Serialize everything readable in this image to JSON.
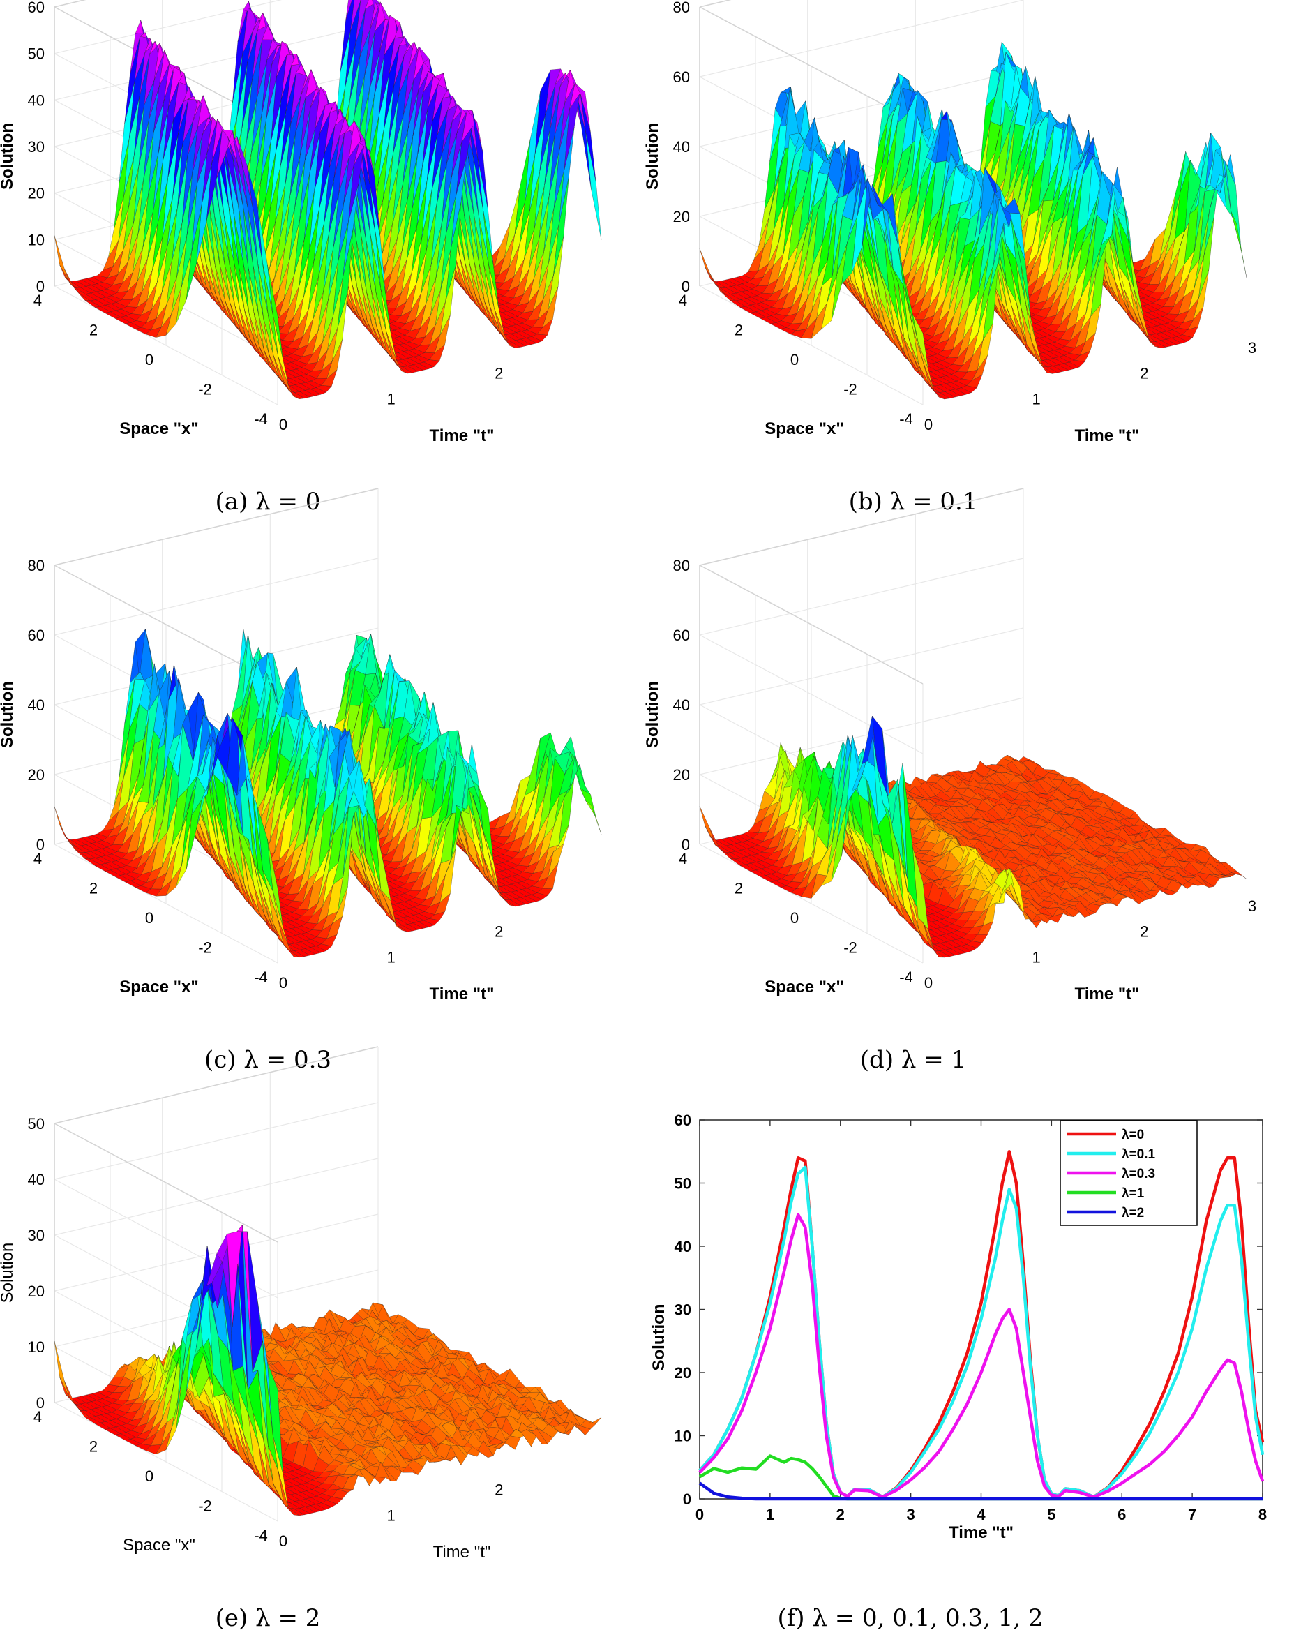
{
  "panels": [
    {
      "id": "a",
      "caption": "(a) λ = 0",
      "lambda": 0,
      "zticks": [
        "0",
        "10",
        "20",
        "30",
        "40",
        "50",
        "60"
      ],
      "zmax": 60,
      "ylabel": "Solution",
      "xlabel": "Space \"x\"",
      "tlabel": "Time \"t\"",
      "xticks": [
        "4",
        "2",
        "0",
        "-2",
        "-4"
      ],
      "tticks": [
        "0",
        "1",
        "2"
      ],
      "decay": 0,
      "rough": 0.05,
      "bold": true
    },
    {
      "id": "b",
      "caption": "(b) λ = 0.1",
      "lambda": 0.1,
      "zticks": [
        "0",
        "20",
        "40",
        "60",
        "80"
      ],
      "zmax": 80,
      "ylabel": "Solution",
      "xlabel": "Space \"x\"",
      "tlabel": "Time \"t\"",
      "xticks": [
        "4",
        "2",
        "0",
        "-2",
        "-4"
      ],
      "tticks": [
        "0",
        "1",
        "2",
        "3"
      ],
      "decay": 0.05,
      "rough": 0.25,
      "bold": true
    },
    {
      "id": "c",
      "caption": "(c) λ = 0.3",
      "lambda": 0.3,
      "zticks": [
        "0",
        "20",
        "40",
        "60",
        "80"
      ],
      "zmax": 80,
      "ylabel": "Solution",
      "xlabel": "Space \"x\"",
      "tlabel": "Time \"t\"",
      "xticks": [
        "4",
        "2",
        "0",
        "-2",
        "-4"
      ],
      "tticks": [
        "0",
        "1",
        "2"
      ],
      "decay": 0.12,
      "rough": 0.35,
      "bold": true
    },
    {
      "id": "d",
      "caption": "(d) λ = 1",
      "lambda": 1,
      "zticks": [
        "0",
        "20",
        "40",
        "60",
        "80"
      ],
      "zmax": 80,
      "ylabel": "Solution",
      "xlabel": "Space \"x\"",
      "tlabel": "Time \"t\"",
      "xticks": [
        "4",
        "2",
        "0",
        "-2",
        "-4"
      ],
      "tticks": [
        "0",
        "1",
        "2",
        "3"
      ],
      "decay": 1.4,
      "rough": 0.5,
      "bold": true
    },
    {
      "id": "e",
      "caption": "(e) λ = 2",
      "lambda": 2,
      "zticks": [
        "0",
        "10",
        "20",
        "30",
        "40",
        "50"
      ],
      "zmax": 50,
      "ylabel": "Solution",
      "xlabel": "Space \"x\"",
      "tlabel": "Time \"t\"",
      "xticks": [
        "4",
        "2",
        "0",
        "-2",
        "-4"
      ],
      "tticks": [
        "0",
        "1",
        "2"
      ],
      "decay": 3.2,
      "rough": 0.5,
      "bold": false
    }
  ],
  "chart_data": {
    "type": "line",
    "caption": "(f)  λ = 0,  0.1,  0.3,  1,  2",
    "title": "",
    "xlabel": "Time \"t\"",
    "ylabel": "Solution",
    "xlim": [
      0,
      8
    ],
    "ylim": [
      0,
      60
    ],
    "xticks": [
      "0",
      "1",
      "2",
      "3",
      "4",
      "5",
      "6",
      "7",
      "8"
    ],
    "yticks": [
      "0",
      "10",
      "20",
      "30",
      "40",
      "50",
      "60"
    ],
    "legend_position": "top-right",
    "x": [
      0,
      0.2,
      0.4,
      0.6,
      0.8,
      1.0,
      1.2,
      1.3,
      1.4,
      1.5,
      1.6,
      1.7,
      1.8,
      1.9,
      2.0,
      2.1,
      2.2,
      2.4,
      2.6,
      2.8,
      3.0,
      3.2,
      3.4,
      3.6,
      3.8,
      4.0,
      4.2,
      4.3,
      4.4,
      4.5,
      4.6,
      4.7,
      4.8,
      4.9,
      5.0,
      5.1,
      5.2,
      5.4,
      5.6,
      5.8,
      6.0,
      6.2,
      6.4,
      6.6,
      6.8,
      7.0,
      7.2,
      7.4,
      7.5,
      7.6,
      7.7,
      7.8,
      7.9,
      8.0
    ],
    "series": [
      {
        "name": "λ=0",
        "color": "#ee1111",
        "values": [
          4.5,
          7,
          11,
          16,
          23,
          32,
          43,
          49,
          54,
          53.5,
          40,
          25,
          12,
          4,
          1,
          0.4,
          1.5,
          1.5,
          0.3,
          1.8,
          4.5,
          8,
          12,
          17,
          23,
          31,
          43,
          50,
          55,
          50,
          37,
          22,
          10,
          3,
          0.8,
          0.5,
          1.6,
          1.3,
          0.3,
          1.8,
          4.5,
          8,
          12,
          17,
          23,
          32,
          44,
          52,
          54,
          54,
          44,
          28,
          14,
          9
        ]
      },
      {
        "name": "λ=0.1",
        "color": "#22eeee",
        "values": [
          4.5,
          7,
          11,
          16,
          23,
          31,
          41,
          47,
          51.5,
          52.5,
          40,
          25,
          12,
          4,
          1,
          0.4,
          1.5,
          1.5,
          0.3,
          1.7,
          4.2,
          7.5,
          11,
          15.5,
          21,
          28.5,
          38,
          44,
          49,
          46,
          35,
          21,
          10,
          3,
          0.8,
          0.5,
          1.6,
          1.3,
          0.3,
          1.7,
          4,
          7,
          10.5,
          15,
          20,
          27,
          36.5,
          44,
          46.5,
          46.5,
          38,
          25,
          13,
          7
        ]
      },
      {
        "name": "λ=0.3",
        "color": "#ee11ee",
        "values": [
          4.2,
          6.5,
          9.5,
          14,
          20,
          27,
          36,
          41,
          45,
          43,
          34,
          21,
          10,
          3.5,
          1,
          0.4,
          1.4,
          1.3,
          0.3,
          1.4,
          3,
          5,
          7.5,
          11,
          15,
          20,
          26,
          28.5,
          30,
          27,
          20,
          13,
          6,
          2,
          0.6,
          0.4,
          1.3,
          1,
          0.3,
          1.2,
          2.5,
          4,
          5.5,
          7.5,
          10,
          13,
          17,
          20.5,
          22,
          21.5,
          17,
          11,
          6,
          2.8
        ]
      },
      {
        "name": "λ=1",
        "color": "#22dd22",
        "values": [
          3.5,
          4.8,
          4.2,
          4.9,
          4.7,
          6.8,
          5.8,
          6.4,
          6.2,
          5.8,
          4.8,
          3.5,
          2,
          0.5,
          0.1,
          0,
          0,
          0,
          0,
          0,
          0,
          0,
          0,
          0,
          0,
          0,
          0,
          0,
          0,
          0,
          0,
          0,
          0,
          0,
          0,
          0,
          0,
          0,
          0,
          0,
          0,
          0,
          0,
          0,
          0,
          0,
          0,
          0,
          0,
          0,
          0,
          0,
          0,
          0
        ]
      },
      {
        "name": "λ=2",
        "color": "#1111dd",
        "values": [
          2.5,
          0.9,
          0.3,
          0.1,
          0,
          0,
          0,
          0,
          0,
          0,
          0,
          0,
          0,
          0,
          0,
          0,
          0,
          0,
          0,
          0,
          0,
          0,
          0,
          0,
          0,
          0,
          0,
          0,
          0,
          0,
          0,
          0,
          0,
          0,
          0,
          0,
          0,
          0,
          0,
          0,
          0,
          0,
          0,
          0,
          0,
          0,
          0,
          0,
          0,
          0,
          0,
          0,
          0,
          0
        ]
      }
    ]
  }
}
